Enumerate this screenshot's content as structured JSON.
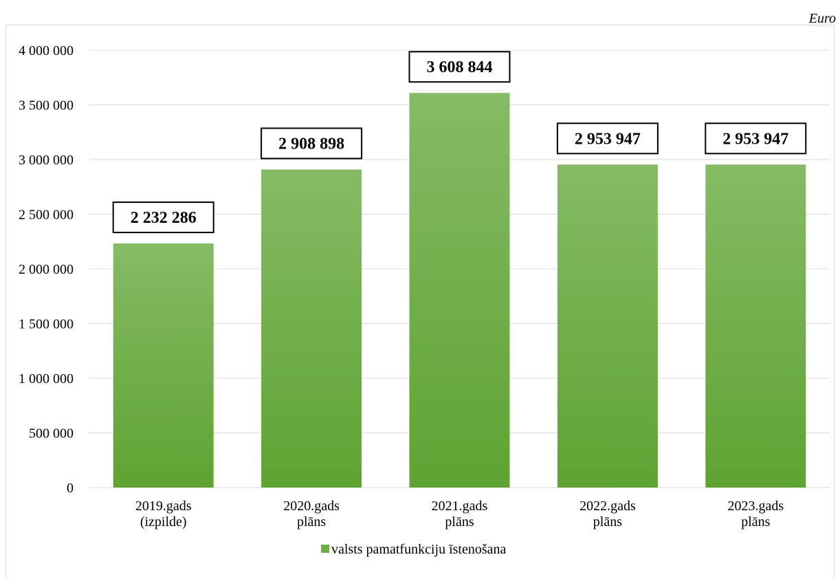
{
  "unit": "Euro",
  "chart_data": {
    "type": "bar",
    "categories": [
      [
        "2019.gads",
        "(izpilde)"
      ],
      [
        "2020.gads",
        "plāns"
      ],
      [
        "2021.gads",
        "plāns"
      ],
      [
        "2022.gads",
        "plāns"
      ],
      [
        "2023.gads",
        "plāns"
      ]
    ],
    "series": [
      {
        "name": "valsts pamatfunkciju īstenošana",
        "values": [
          2232286,
          2908898,
          3608844,
          2953947,
          2953947
        ],
        "labels": [
          "2 232 286",
          "2 908 898",
          "3 608 844",
          "2 953 947",
          "2 953 947"
        ]
      }
    ],
    "ylim": [
      0,
      4000000
    ],
    "yticks": [
      0,
      500000,
      1000000,
      1500000,
      2000000,
      2500000,
      3000000,
      3500000,
      4000000
    ],
    "ytick_labels": [
      "0",
      "500 000",
      "1 000 000",
      "1 500 000",
      "2 000 000",
      "2 500 000",
      "3 000 000",
      "3 500 000",
      "4 000 000"
    ],
    "grid": true,
    "legend": "bottom-center",
    "colors": {
      "bar_top": "#85bb65",
      "bar_bottom": "#5fa332",
      "legend_swatch": "#70ad47",
      "grid": "#d9d9d9"
    }
  }
}
